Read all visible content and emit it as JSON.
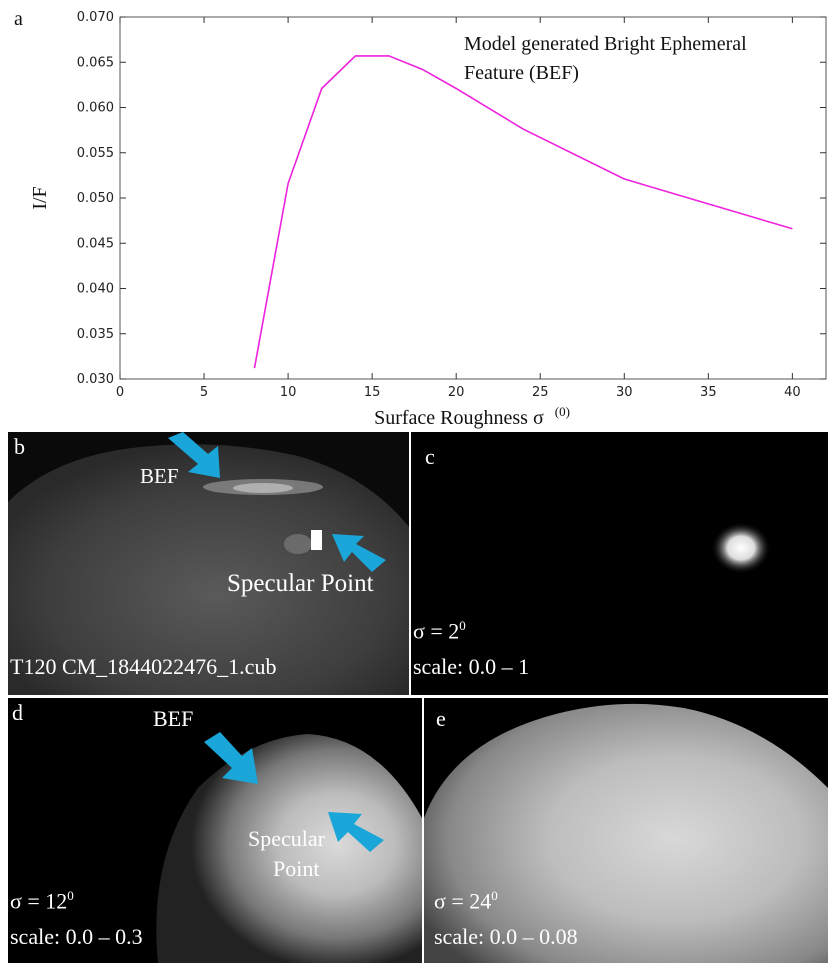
{
  "chart_data": {
    "type": "line",
    "panel_label": "a",
    "annotation_line1": "Model generated Bright Ephemeral",
    "annotation_line2": "Feature (BEF)",
    "xlabel": "Surface Roughness σ",
    "xlabel_sup": "(0)",
    "ylabel": "I/F",
    "xlim": [
      0,
      42
    ],
    "ylim": [
      0.03,
      0.07
    ],
    "xticks": [
      0,
      5,
      10,
      15,
      20,
      25,
      30,
      35,
      40
    ],
    "yticks": [
      "0.030",
      "0.035",
      "0.040",
      "0.045",
      "0.050",
      "0.055",
      "0.060",
      "0.065",
      "0.070"
    ],
    "series": [
      {
        "color": "#ee22dd",
        "x": [
          8,
          10,
          12,
          14,
          16,
          18,
          20,
          24,
          30,
          40
        ],
        "y": [
          0.0312,
          0.0516,
          0.0621,
          0.0657,
          0.0657,
          0.0642,
          0.0621,
          0.0576,
          0.0521,
          0.0466
        ]
      }
    ]
  },
  "panels": {
    "b": {
      "letter": "b",
      "arrow1_label": "BEF",
      "arrow2_label": "Specular Point",
      "caption": "T120 CM_1844022476_1.cub"
    },
    "c": {
      "letter": "c",
      "sigma_prefix": "σ = 2",
      "sigma_sup": "0",
      "scale": "scale: 0.0 – 1"
    },
    "d": {
      "letter": "d",
      "arrow1_label": "BEF",
      "arrow2_label_line1": "Specular",
      "arrow2_label_line2": "Point",
      "sigma_prefix": "σ = 12",
      "sigma_sup": "0",
      "scale": "scale: 0.0 – 0.3"
    },
    "e": {
      "letter": "e",
      "sigma_prefix": "σ = 24",
      "sigma_sup": "0",
      "scale": "scale: 0.0 – 0.08"
    }
  },
  "colors": {
    "arrow": "#1aa6d9",
    "line": "#ee22dd"
  }
}
